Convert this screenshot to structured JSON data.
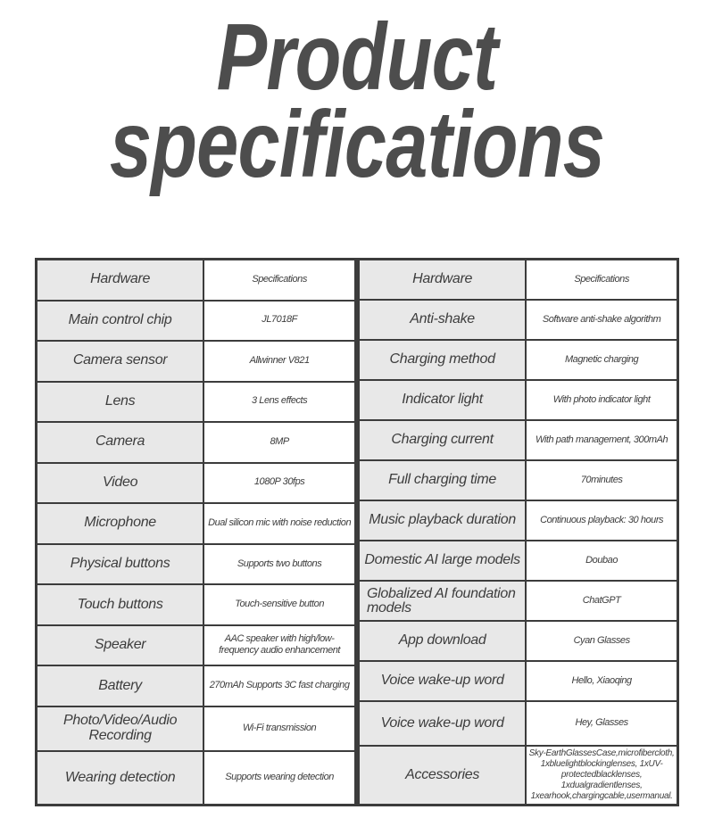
{
  "title": {
    "line1": "Product",
    "line2": "specifications"
  },
  "colors": {
    "title_text": "#4d4d4d",
    "table_border": "#3c3c3c",
    "label_cell_bg": "#e8e8e8",
    "cell_text": "#3d3d3d",
    "page_bg": "#ffffff"
  },
  "left": {
    "rows": [
      {
        "label": "Hardware",
        "value": "Specifications"
      },
      {
        "label": "Main control chip",
        "value": "JL7018F"
      },
      {
        "label": "Camera sensor",
        "value": "Allwinner V821"
      },
      {
        "label": "Lens",
        "value": "3 Lens effects"
      },
      {
        "label": "Camera",
        "value": "8MP"
      },
      {
        "label": "Video",
        "value": "1080P 30fps"
      },
      {
        "label": "Microphone",
        "value": "Dual silicon mic with noise reduction"
      },
      {
        "label": "Physical buttons",
        "value": "Supports two buttons"
      },
      {
        "label": "Touch buttons",
        "value": "Touch-sensitive button"
      },
      {
        "label": "Speaker",
        "value": "AAC speaker with high/low-frequency audio enhancement"
      },
      {
        "label": "Battery",
        "value": "270mAh Supports 3C fast charging"
      },
      {
        "label": "Photo/Video/Audio Recording",
        "value": "Wi-Fi transmission"
      },
      {
        "label": "Wearing detection",
        "value": "Supports wearing detection"
      }
    ]
  },
  "right": {
    "rows": [
      {
        "label": "Hardware",
        "value": "Specifications"
      },
      {
        "label": "Anti-shake",
        "value": "Software anti-shake algorithm"
      },
      {
        "label": "Charging method",
        "value": "Magnetic charging"
      },
      {
        "label": "Indicator light",
        "value": "With photo indicator light"
      },
      {
        "label": "Charging current",
        "value": "With path management, 300mAh"
      },
      {
        "label": "Full charging time",
        "value": "70minutes"
      },
      {
        "label": "Music playback duration",
        "value": "Continuous playback: 30 hours"
      },
      {
        "label": "Domestic AI large models",
        "value": "Doubao"
      },
      {
        "label": "Globalized AI foundation models",
        "value": "ChatGPT"
      },
      {
        "label": "App download",
        "value": "Cyan Glasses"
      },
      {
        "label": "Voice wake-up word",
        "value": "Hello, Xiaoqing"
      },
      {
        "label": "Voice wake-up word",
        "value": "Hey,  Glasses"
      },
      {
        "label": "Accessories",
        "value": "Sky-EarthGlassesCase,microfibercloth, 1xbluelightblockinglenses, 1xUV-protectedblacklenses, 1xdualgradientlenses, 1xearhook,chargingcable,usermanual."
      }
    ]
  }
}
